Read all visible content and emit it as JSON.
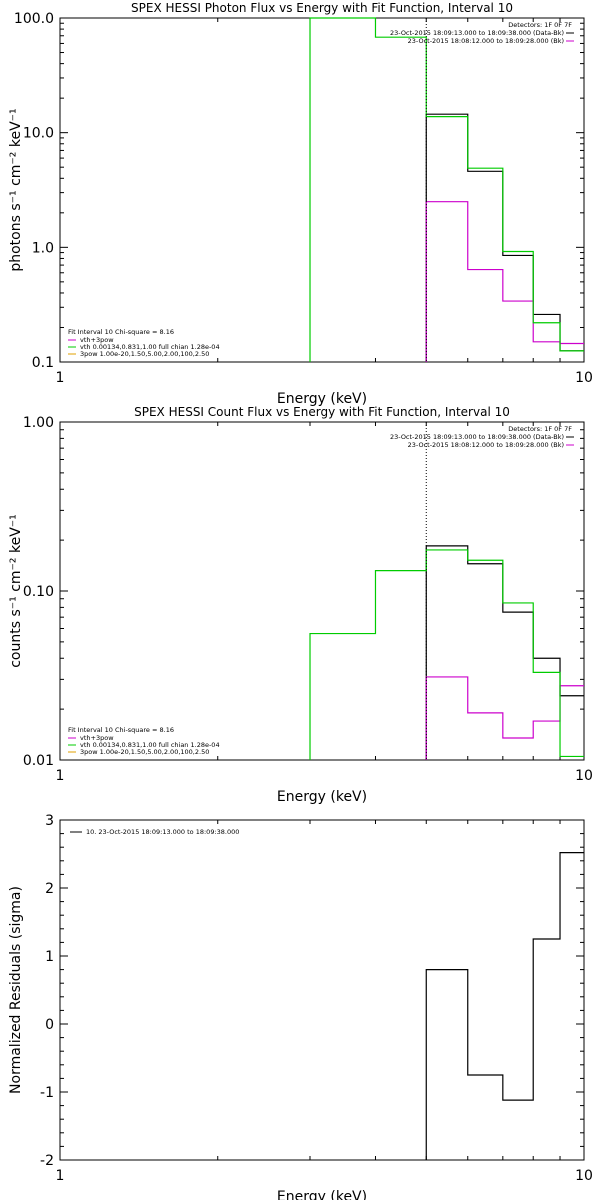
{
  "chart_data": [
    {
      "type": "line",
      "title": "SPEX HESSI Photon Flux vs Energy with Fit Function, Interval 10",
      "xlabel": "Energy (keV)",
      "ylabel": "photons s⁻¹ cm⁻² keV⁻¹",
      "xscale": "log",
      "yscale": "log",
      "xlim": [
        1,
        10
      ],
      "ylim": [
        0.1,
        100
      ],
      "xticks": [
        {
          "v": 1,
          "label": "1"
        },
        {
          "v": 10,
          "label": "10"
        }
      ],
      "yticks": [
        {
          "v": 0.1,
          "label": "0.1"
        },
        {
          "v": 1,
          "label": "1.0"
        },
        {
          "v": 10,
          "label": "10.0"
        },
        {
          "v": 100,
          "label": "100.0"
        }
      ],
      "marker_line": 5,
      "header": {
        "detectors": "Detectors: 1F 0F 7F",
        "line1": "23-Oct-2015 18:09:13.000 to 18:09:38.000 (Data-Bk)",
        "line2": "23-Oct-2015 18:08:12.000 to 18:09:28.000 (Bk)"
      },
      "legend": {
        "fit_line": "Fit Interval 10    Chi-square = 8.16",
        "items": [
          {
            "label": "vth+3pow",
            "color": "#cc00cc"
          },
          {
            "label": "vth 0.00134,0.831,1.00   full chian 1.28e-04",
            "color": "#00cc00"
          },
          {
            "label": "3pow 1.00e-20,1.50,5.00,2.00,100,2.50",
            "color": "#e0a000"
          }
        ]
      },
      "series": [
        {
          "name": "Data-Bk",
          "color": "#000000",
          "steps": [
            [
              5,
              6,
              14.5
            ],
            [
              6,
              7,
              4.6
            ],
            [
              7,
              8,
              0.85
            ],
            [
              8,
              9,
              0.26
            ],
            [
              9,
              10,
              0.125
            ]
          ]
        },
        {
          "name": "Bk",
          "color": "#cc00cc",
          "steps": [
            [
              5,
              6,
              2.5
            ],
            [
              6,
              7,
              0.64
            ],
            [
              7,
              8,
              0.34
            ],
            [
              8,
              9,
              0.15
            ],
            [
              9,
              10,
              0.145
            ]
          ]
        },
        {
          "name": "vth",
          "color": "#00cc00",
          "steps": [
            [
              3,
              4,
              1000
            ],
            [
              4,
              5,
              68
            ],
            [
              5,
              6,
              13.8
            ],
            [
              6,
              7,
              4.9
            ],
            [
              7,
              8,
              0.92
            ],
            [
              8,
              9,
              0.22
            ],
            [
              9,
              10,
              0.125
            ]
          ]
        }
      ]
    },
    {
      "type": "line",
      "title": "SPEX HESSI Count Flux vs Energy with Fit Function, Interval 10",
      "xlabel": "Energy (keV)",
      "ylabel": "counts s⁻¹ cm⁻² keV⁻¹",
      "xscale": "log",
      "yscale": "log",
      "xlim": [
        1,
        10
      ],
      "ylim": [
        0.01,
        1
      ],
      "xticks": [
        {
          "v": 1,
          "label": "1"
        },
        {
          "v": 10,
          "label": "10"
        }
      ],
      "yticks": [
        {
          "v": 0.01,
          "label": "0.01"
        },
        {
          "v": 0.1,
          "label": "0.10"
        },
        {
          "v": 1,
          "label": "1.00"
        }
      ],
      "marker_line": 5,
      "header": {
        "detectors": "Detectors: 1F 0F 7F",
        "line1": "23-Oct-2015 18:09:13.000 to 18:09:38.000 (Data-Bk)",
        "line2": "23-Oct-2015 18:08:12.000 to 18:09:28.000 (Bk)"
      },
      "legend": {
        "fit_line": "Fit Interval 10    Chi-square = 8.16",
        "items": [
          {
            "label": "vth+3pow",
            "color": "#cc00cc"
          },
          {
            "label": "vth 0.00134,0.831,1.00   full chian 1.28e-04",
            "color": "#00cc00"
          },
          {
            "label": "3pow 1.00e-20,1.50,5.00,2.00,100,2.50",
            "color": "#e0a000"
          }
        ]
      },
      "series": [
        {
          "name": "Data-Bk",
          "color": "#000000",
          "steps": [
            [
              5,
              6,
              0.185
            ],
            [
              6,
              7,
              0.145
            ],
            [
              7,
              8,
              0.075
            ],
            [
              8,
              9,
              0.04
            ],
            [
              9,
              10,
              0.024
            ]
          ]
        },
        {
          "name": "Bk",
          "color": "#cc00cc",
          "steps": [
            [
              5,
              6,
              0.031
            ],
            [
              6,
              7,
              0.019
            ],
            [
              7,
              8,
              0.0135
            ],
            [
              8,
              9,
              0.017
            ],
            [
              9,
              10,
              0.0275
            ]
          ]
        },
        {
          "name": "vth",
          "color": "#00cc00",
          "steps": [
            [
              3,
              4,
              0.056
            ],
            [
              4,
              5,
              0.132
            ],
            [
              5,
              6,
              0.175
            ],
            [
              6,
              7,
              0.152
            ],
            [
              7,
              8,
              0.085
            ],
            [
              8,
              9,
              0.033
            ],
            [
              9,
              10,
              0.0105
            ]
          ]
        }
      ]
    },
    {
      "type": "line",
      "title": "",
      "xlabel": "Energy (keV)",
      "ylabel": "Normalized Residuals (sigma)",
      "xscale": "log",
      "yscale": "linear",
      "xlim": [
        1,
        10
      ],
      "ylim": [
        -2,
        3
      ],
      "xticks": [
        {
          "v": 1,
          "label": "1"
        },
        {
          "v": 10,
          "label": "10"
        }
      ],
      "yticks": [
        {
          "v": -2,
          "label": "-2"
        },
        {
          "v": -1,
          "label": "-1"
        },
        {
          "v": 0,
          "label": "0"
        },
        {
          "v": 1,
          "label": "1"
        },
        {
          "v": 2,
          "label": "2"
        },
        {
          "v": 3,
          "label": "3"
        }
      ],
      "marker_line": null,
      "header": null,
      "legend": {
        "fit_line": "",
        "items": [
          {
            "label": "10. 23-Oct-2015 18:09:13.000 to 18:09:38.000",
            "color": "#000000"
          }
        ]
      },
      "series": [
        {
          "name": "10. 23-Oct-2015 18:09:13.000 to 18:09:38.000",
          "color": "#000000",
          "steps": [
            [
              5,
              6,
              0.8
            ],
            [
              6,
              7,
              -0.75
            ],
            [
              7,
              8,
              -1.12
            ],
            [
              8,
              9,
              1.25
            ],
            [
              9,
              10,
              2.52
            ]
          ]
        }
      ]
    }
  ]
}
